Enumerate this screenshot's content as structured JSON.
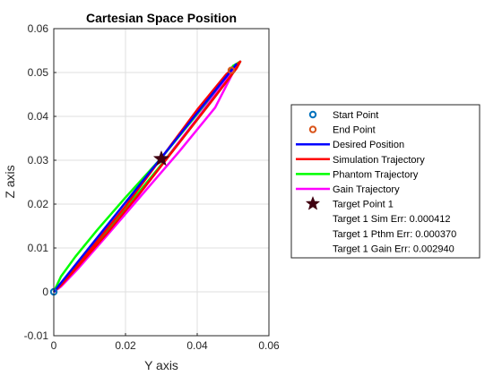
{
  "chart_data": {
    "type": "line",
    "title": "Cartesian Space Position",
    "xlabel": "Y axis",
    "ylabel": "Z axis",
    "xlim": [
      0,
      0.06
    ],
    "ylim": [
      -0.01,
      0.06
    ],
    "xticks": [
      "0",
      "0.02",
      "0.04",
      "0.06"
    ],
    "yticks": [
      "-0.01",
      "0",
      "0.01",
      "0.02",
      "0.03",
      "0.04",
      "0.05",
      "0.06"
    ],
    "grid": true,
    "legend_position": "east-outside",
    "series": [
      {
        "name": "Desired Position",
        "color": "#0000ff",
        "x": [
          0,
          0.051
        ],
        "y": [
          0,
          0.052
        ]
      },
      {
        "name": "Simulation Trajectory",
        "color": "#ff0000",
        "x": [
          0,
          0.01,
          0.02,
          0.03,
          0.04,
          0.048,
          0.052,
          0.051,
          0.045,
          0.035,
          0.025,
          0.015,
          0.007,
          0.002,
          0
        ],
        "y": [
          0,
          0.0095,
          0.0195,
          0.0305,
          0.0415,
          0.0495,
          0.0525,
          0.051,
          0.0445,
          0.034,
          0.0235,
          0.0135,
          0.006,
          0.0015,
          0
        ]
      },
      {
        "name": "Phantom Trajectory",
        "color": "#00ff00",
        "x": [
          0,
          0.002,
          0.006,
          0.012,
          0.02,
          0.03,
          0.04,
          0.048,
          0.05,
          0.052,
          0.051,
          0.045,
          0.035,
          0.025,
          0.015,
          0.007,
          0.002,
          0
        ],
        "y": [
          0,
          0.0035,
          0.008,
          0.014,
          0.0215,
          0.0305,
          0.0405,
          0.049,
          0.0515,
          0.0525,
          0.051,
          0.0445,
          0.034,
          0.024,
          0.014,
          0.0065,
          0.0018,
          0
        ]
      },
      {
        "name": "Gain Trajectory",
        "color": "#ff00ff",
        "x": [
          0,
          0.01,
          0.02,
          0.03,
          0.04,
          0.049,
          0.052,
          0.05,
          0.045,
          0.035,
          0.025,
          0.015,
          0.007,
          0.002,
          0
        ],
        "y": [
          0,
          0.0085,
          0.018,
          0.029,
          0.0395,
          0.0495,
          0.0525,
          0.05,
          0.042,
          0.032,
          0.0225,
          0.013,
          0.0055,
          0.0012,
          0
        ]
      }
    ],
    "markers": [
      {
        "name": "Start Point",
        "x": 0,
        "y": 0,
        "color": "#0072bd",
        "shape": "circle"
      },
      {
        "name": "End Point",
        "x": 0.0495,
        "y": 0.0505,
        "color": "#d95319",
        "shape": "circle"
      },
      {
        "name": "Target Point 1",
        "x": 0.03,
        "y": 0.0303,
        "color": "#400010",
        "shape": "star"
      }
    ],
    "legend": [
      {
        "label": "Start Point",
        "kind": "circle",
        "color": "#0072bd"
      },
      {
        "label": "End Point",
        "kind": "circle",
        "color": "#d95319"
      },
      {
        "label": "Desired Position",
        "kind": "line",
        "color": "#0000ff"
      },
      {
        "label": "Simulation Trajectory",
        "kind": "line",
        "color": "#ff0000"
      },
      {
        "label": "Phantom Trajectory",
        "kind": "line",
        "color": "#00ff00"
      },
      {
        "label": "Gain Trajectory",
        "kind": "line",
        "color": "#ff00ff"
      },
      {
        "label": "Target Point 1",
        "kind": "star",
        "color": "#400010"
      },
      {
        "label": "Target 1 Sim Err: 0.000412",
        "kind": "none",
        "color": ""
      },
      {
        "label": "Target 1 Pthm Err: 0.000370",
        "kind": "none",
        "color": ""
      },
      {
        "label": "Target 1 Gain Err: 0.002940",
        "kind": "none",
        "color": ""
      }
    ]
  }
}
